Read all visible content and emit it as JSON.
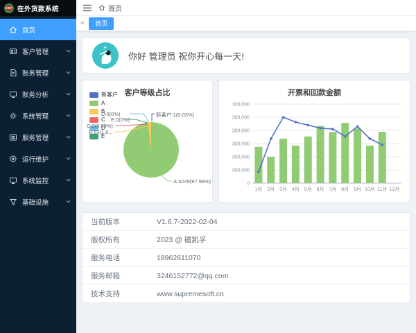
{
  "app": {
    "logo_text": "CKF",
    "title": "在外货款系统"
  },
  "sidebar": {
    "items": [
      {
        "id": "home",
        "label": "首页",
        "icon": "home",
        "active": true,
        "has_children": false
      },
      {
        "id": "customer",
        "label": "客户管理",
        "icon": "user-card",
        "active": false,
        "has_children": true
      },
      {
        "id": "finance",
        "label": "账务管理",
        "icon": "document",
        "active": false,
        "has_children": true
      },
      {
        "id": "analysis",
        "label": "账务分析",
        "icon": "monitor",
        "active": false,
        "has_children": true
      },
      {
        "id": "system",
        "label": "系统管理",
        "icon": "gear",
        "active": false,
        "has_children": true
      },
      {
        "id": "service",
        "label": "服务管理",
        "icon": "list",
        "active": false,
        "has_children": true
      },
      {
        "id": "ops",
        "label": "运行维护",
        "icon": "circle-dot",
        "active": false,
        "has_children": true
      },
      {
        "id": "monitor",
        "label": "系统监控",
        "icon": "monitor",
        "active": false,
        "has_children": true
      },
      {
        "id": "infra",
        "label": "基础设施",
        "icon": "funnel",
        "active": false,
        "has_children": true
      }
    ]
  },
  "navbar": {
    "breadcrumb": [
      {
        "label": "首页"
      }
    ]
  },
  "tabs_bar": {
    "scroll_left": "«"
  },
  "tabs": [
    {
      "label": "首页",
      "active": true
    }
  ],
  "greeting": {
    "text": "你好 管理员 祝你开心每一天!"
  },
  "chart_data": [
    {
      "type": "pie",
      "title": "客户等级占比",
      "legend_position": "left",
      "series": [
        {
          "name": "新客户",
          "value": 1,
          "pct": "0.03%",
          "color": "#5470c6"
        },
        {
          "name": "A",
          "value": 3249,
          "pct": "97.98%",
          "color": "#91cc75"
        },
        {
          "name": "B",
          "value": 63,
          "pct": "1.9%",
          "color": "#fac858"
        },
        {
          "name": "C",
          "value": 3,
          "pct": "0.09%",
          "color": "#ee6666"
        },
        {
          "name": "D",
          "value": 0,
          "pct": "0%",
          "color": "#73c0de"
        },
        {
          "name": "E",
          "value": 0,
          "pct": "0%",
          "color": "#3ba272"
        }
      ],
      "labels_shown": [
        "D:0(0%)",
        "新客户:1(0.03%)",
        "E:0(0%)",
        "C:3(0.09%)",
        "B:63(1.9...",
        "A:3249(97.98%)"
      ]
    },
    {
      "type": "bar",
      "title": "开票和回款金额",
      "categories": [
        "1月",
        "2月",
        "3月",
        "4月",
        "5月",
        "6月",
        "7月",
        "8月",
        "9月",
        "10月",
        "11月",
        "12月"
      ],
      "series": [
        {
          "type": "bar",
          "color": "#91cc75",
          "values": [
            275000,
            200000,
            338000,
            285000,
            354000,
            434000,
            388000,
            457000,
            415000,
            285000,
            389000,
            null
          ]
        },
        {
          "type": "line",
          "color": "#5470c6",
          "values": [
            86000,
            337000,
            500000,
            463000,
            440000,
            417000,
            411000,
            354000,
            430000,
            337000,
            291000,
            null
          ]
        }
      ],
      "ylim": [
        0,
        600000
      ],
      "ytick_labels_bottom_to_top": [
        "0",
        "300,000",
        "300,000",
        "300,000",
        "300,000",
        "300,000",
        "300,000"
      ],
      "grid": true,
      "legend_position": "none"
    }
  ],
  "info_table": {
    "rows": [
      {
        "label": "当前版本",
        "value": "V1.6.7-2022-02-04"
      },
      {
        "label": "版权所有",
        "value": "2023 @ 磁凯孚"
      },
      {
        "label": "服务电话",
        "value": "18962611070"
      },
      {
        "label": "服务邮箱",
        "value": "3246152772@qq.com"
      },
      {
        "label": "技术支持",
        "value": "www.supremesoft.cn"
      }
    ]
  }
}
